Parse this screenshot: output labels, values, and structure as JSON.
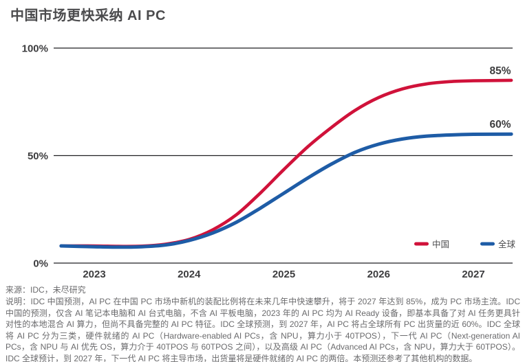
{
  "title": "中国市场更快采纳 AI PC",
  "source": "来源：IDC，未尽研究",
  "notes": "说明：IDC 中国预测，AI PC 在中国 PC 市场中新机的装配比例将在未来几年中快速攀升，将于 2027 年达到 85%，成为 PC 市场主流。IDC 中国的预测，仅含 AI 笔记本电脑和 AI 台式电脑，不含 AI 平板电脑，2023 年的 AI PC 均为 AI Ready 设备，即基本具备了对 AI 任务更具针对性的本地混合 AI 算力，但尚不具备完整的 AI PC 特征。IDC 全球预测，到 2027 年，AI PC 将占全球所有 PC 出货量的近 60%。IDC 全球将 AI PC 分为三类，硬件就绪的 AI PC（Hardware-enabled AI PCs，含 NPU，算力小于 40TPOS），下一代 AI PC（Next-generation AI PCs，含 NPU 与 AI 优先 OS，算力介于 40TPOS 与 60TPOS 之间），以及高级 AI PC（Advanced AI PCs，含 NPU，算力大于 60TPOS）。IDC 全球预计，到 2027 年，下一代 AI PC 将主导市场，出货量将是硬件就绪的 AI PC 的两倍。本预测还参考了其他机构的数据。",
  "colors": {
    "china_red": "#d0123a",
    "global_blue": "#1e5ca6",
    "gridline": "#1f1f21",
    "axis_text": "#3d3d3f",
    "title_text": "#4b4b4d",
    "note_text": "#6a6a6c"
  },
  "chart_data": {
    "type": "line",
    "title": "中国市场更快采纳 AI PC",
    "xlabel": "",
    "ylabel": "",
    "x_ticks": [
      2023,
      2024,
      2025,
      2026,
      2027
    ],
    "y_ticks": [
      {
        "value": 0,
        "label": "0%"
      },
      {
        "value": 50,
        "label": "50%"
      },
      {
        "value": 100,
        "label": "100%"
      }
    ],
    "ylim": [
      0,
      100
    ],
    "xlim": [
      2022.65,
      2027.4
    ],
    "grid": "horizontal-only",
    "legend_position": "inside-bottom-right",
    "x": [
      2022.65,
      2023,
      2023.25,
      2023.5,
      2023.75,
      2024,
      2024.25,
      2024.5,
      2024.75,
      2025,
      2025.25,
      2025.5,
      2025.75,
      2026,
      2026.25,
      2026.5,
      2026.75,
      2027,
      2027.4
    ],
    "series": [
      {
        "name": "中国",
        "color": "#d0123a",
        "end_label": "85%",
        "values": [
          8,
          8,
          7.8,
          7.9,
          8.8,
          11,
          15.5,
          22.5,
          32.5,
          43.5,
          54,
          63,
          71,
          77,
          81,
          83.3,
          84.4,
          84.8,
          85
        ]
      },
      {
        "name": "全球",
        "color": "#1e5ca6",
        "end_label": "60%",
        "values": [
          8,
          7.6,
          7.4,
          7.6,
          8.4,
          10.5,
          14,
          19,
          25.5,
          32.5,
          39.5,
          46,
          51.5,
          55.3,
          57.7,
          59,
          59.6,
          59.9,
          60
        ]
      }
    ]
  }
}
